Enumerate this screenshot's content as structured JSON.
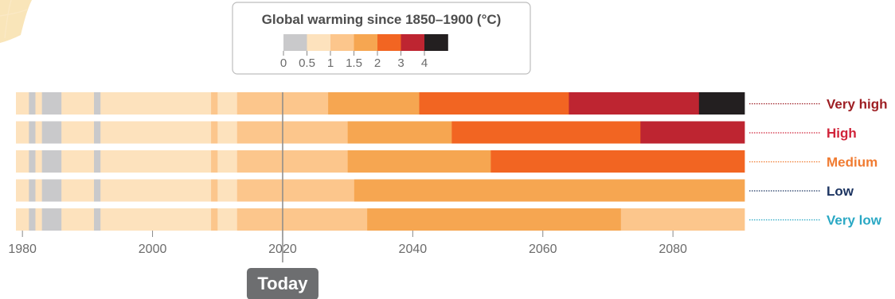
{
  "chart_data": {
    "type": "heatmap",
    "title": "",
    "xlabel": "",
    "ylabel": "",
    "xlim": [
      1979,
      2091
    ],
    "x_ticks": [
      "1980",
      "2000",
      "2020",
      "2040",
      "2060",
      "2080"
    ],
    "legend": {
      "title": "Global warming since 1850–1900 (°C)",
      "tick_labels": [
        "0",
        "0.5",
        "1",
        "1.5",
        "2",
        "3",
        "4"
      ],
      "bins": [
        {
          "range": "<0.5",
          "color": "#c9c9cb"
        },
        {
          "range": "0.5–1",
          "color": "#fde2bd"
        },
        {
          "range": "1–1.5",
          "color": "#fcc68c"
        },
        {
          "range": "1.5–2",
          "color": "#f6a651"
        },
        {
          "range": "2–3",
          "color": "#f26522"
        },
        {
          "range": "3–4",
          "color": "#be2531"
        },
        {
          "range": ">4",
          "color": "#231f20"
        }
      ]
    },
    "history": [
      {
        "from": 1979,
        "to": 1981,
        "bin": 1
      },
      {
        "from": 1981,
        "to": 1982,
        "bin": 0
      },
      {
        "from": 1982,
        "to": 1983,
        "bin": 1
      },
      {
        "from": 1983,
        "to": 1986,
        "bin": 0
      },
      {
        "from": 1986,
        "to": 1991,
        "bin": 1
      },
      {
        "from": 1991,
        "to": 1992,
        "bin": 0
      },
      {
        "from": 1992,
        "to": 2009,
        "bin": 1
      },
      {
        "from": 2009,
        "to": 2010,
        "bin": 2
      },
      {
        "from": 2010,
        "to": 2011,
        "bin": 1
      },
      {
        "from": 2011,
        "to": 2013,
        "bin": 1
      }
    ],
    "scenarios": [
      {
        "name": "Very high",
        "color": "#9e1f24",
        "segments": [
          {
            "from": 2013,
            "to": 2027,
            "bin": 2
          },
          {
            "from": 2027,
            "to": 2041,
            "bin": 3
          },
          {
            "from": 2041,
            "to": 2064,
            "bin": 4
          },
          {
            "from": 2064,
            "to": 2084,
            "bin": 5
          },
          {
            "from": 2084,
            "to": 2091,
            "bin": 6
          }
        ]
      },
      {
        "name": "High",
        "color": "#d1243a",
        "segments": [
          {
            "from": 2013,
            "to": 2030,
            "bin": 2
          },
          {
            "from": 2030,
            "to": 2046,
            "bin": 3
          },
          {
            "from": 2046,
            "to": 2075,
            "bin": 4
          },
          {
            "from": 2075,
            "to": 2091,
            "bin": 5
          }
        ]
      },
      {
        "name": "Medium",
        "color": "#f07b31",
        "segments": [
          {
            "from": 2013,
            "to": 2030,
            "bin": 2
          },
          {
            "from": 2030,
            "to": 2052,
            "bin": 3
          },
          {
            "from": 2052,
            "to": 2091,
            "bin": 4
          }
        ]
      },
      {
        "name": "Low",
        "color": "#1c3461",
        "segments": [
          {
            "from": 2013,
            "to": 2031,
            "bin": 2
          },
          {
            "from": 2031,
            "to": 2091,
            "bin": 3
          }
        ]
      },
      {
        "name": "Very low",
        "color": "#2aa8c4",
        "segments": [
          {
            "from": 2013,
            "to": 2033,
            "bin": 2
          },
          {
            "from": 2033,
            "to": 2072,
            "bin": 3
          },
          {
            "from": 2072,
            "to": 2091,
            "bin": 2
          }
        ]
      }
    ],
    "today": {
      "label": "Today",
      "year": 2020
    },
    "grid": false
  },
  "colors": {
    "text_gray": "#6b6b6b",
    "today_box": "#6d6e70",
    "today_line": "#8a8a8a",
    "legend_border": "#bdbdbd"
  }
}
